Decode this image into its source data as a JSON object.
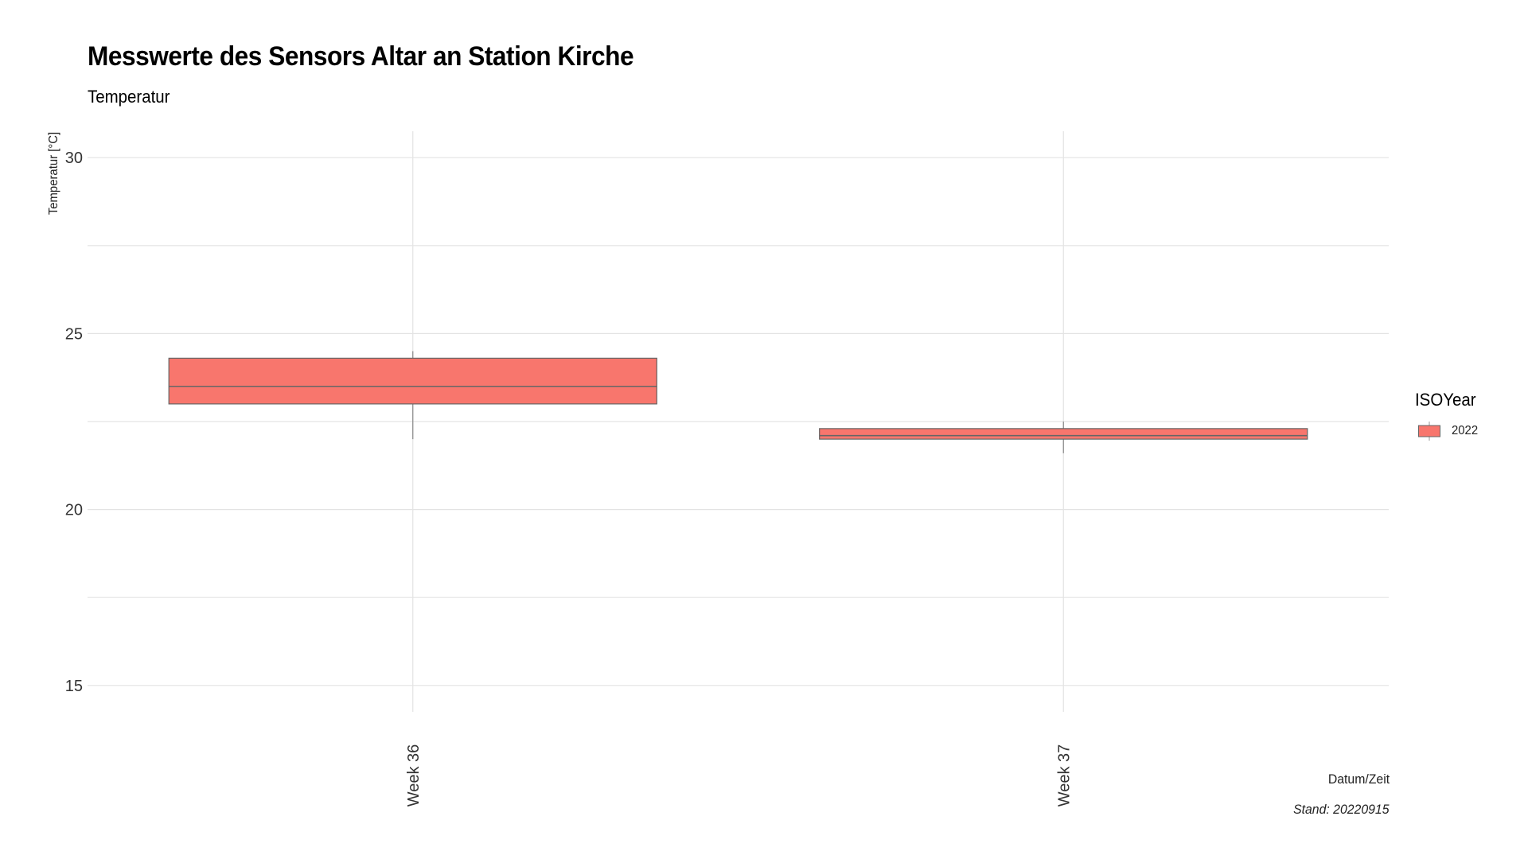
{
  "chart_data": {
    "type": "boxplot",
    "title": "Messwerte des Sensors Altar an Station Kirche",
    "subtitle": "Temperatur",
    "xlabel": "Datum/Zeit",
    "ylabel": "Temperatur [°C]",
    "caption": "Stand: 20220915",
    "categories": [
      "Week 36",
      "Week 37"
    ],
    "ylim": [
      14.25,
      30.75
    ],
    "yticks": [
      15,
      20,
      25,
      30
    ],
    "grid": true,
    "legend": {
      "title": "ISOYear",
      "position": "right",
      "entries": [
        "2022"
      ]
    },
    "series": [
      {
        "name": "2022",
        "color": "#F8766D",
        "boxes": [
          {
            "category": "Week 36",
            "min": 22.0,
            "q1": 23.0,
            "median": 23.5,
            "q3": 24.3,
            "max": 24.5
          },
          {
            "category": "Week 37",
            "min": 21.6,
            "q1": 22.0,
            "median": 22.1,
            "q3": 22.3,
            "max": 22.5
          }
        ]
      }
    ]
  }
}
